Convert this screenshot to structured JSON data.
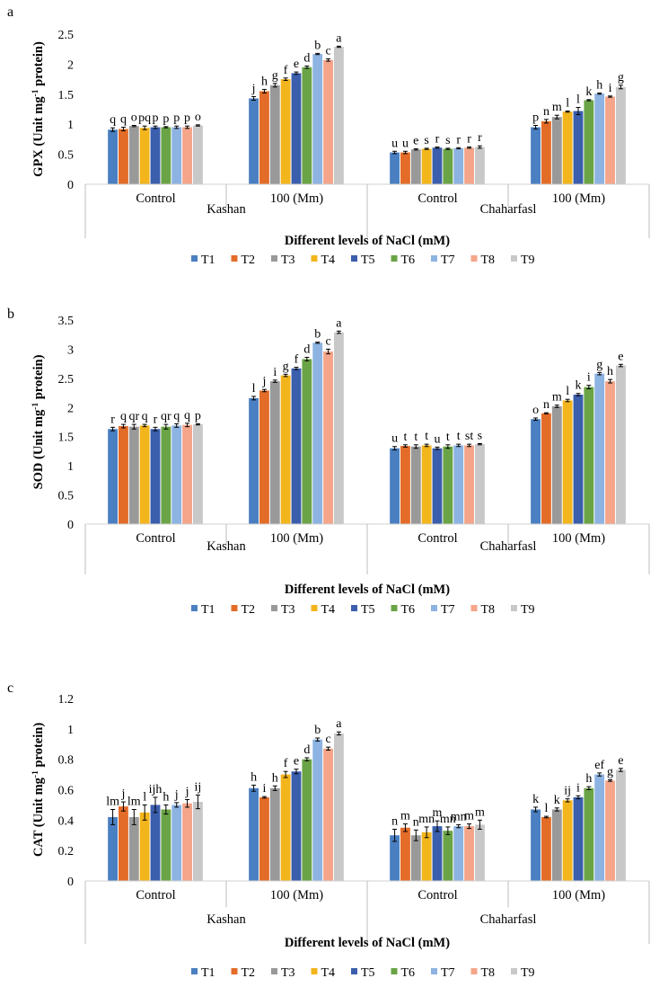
{
  "legend": [
    "T1",
    "T2",
    "T3",
    "T4",
    "T5",
    "T6",
    "T7",
    "T8",
    "T9"
  ],
  "colors": [
    "#4a7fc1",
    "#e36c28",
    "#999999",
    "#f3b51c",
    "#3b5ead",
    "#6aa446",
    "#8db3e2",
    "#f4a58a",
    "#c8c8c8"
  ],
  "chart_data": [
    {
      "type": "bar",
      "panel_letter": "a",
      "title": "",
      "ylabel": "GPX (Unit mg-1 protein)",
      "ylabel_parts": {
        "prefix": "GPX (Unit mg",
        "sup": "-1",
        "suffix": " protein)"
      },
      "xlabel": "Different levels of NaCl (mM)",
      "ylim": [
        0,
        2.5
      ],
      "yticks": [
        0,
        0.5,
        1,
        1.5,
        2,
        2.5
      ],
      "ytick_labels": [
        "0",
        "0.5",
        "1",
        "1.5",
        "2",
        "2.5"
      ],
      "categories": [
        "Control",
        "100 (Mm)",
        "Control",
        "100 (Mm)"
      ],
      "groups": [
        "Kashan",
        "Chaharfasl"
      ],
      "series": [
        {
          "name": "T1",
          "values": [
            0.91,
            1.43,
            0.53,
            0.95
          ],
          "errors": [
            0.03,
            0.03,
            0.02,
            0.03
          ],
          "letters": [
            "q",
            "j",
            "u",
            "p"
          ]
        },
        {
          "name": "T2",
          "values": [
            0.92,
            1.55,
            0.53,
            1.05
          ],
          "errors": [
            0.03,
            0.03,
            0.02,
            0.03
          ],
          "letters": [
            "q",
            "h",
            "u",
            "n"
          ]
        },
        {
          "name": "T3",
          "values": [
            0.97,
            1.65,
            0.58,
            1.12
          ],
          "errors": [
            0.01,
            0.03,
            0.01,
            0.03
          ],
          "letters": [
            "o",
            "g",
            "e",
            "m"
          ]
        },
        {
          "name": "T4",
          "values": [
            0.94,
            1.75,
            0.59,
            1.21
          ],
          "errors": [
            0.03,
            0.02,
            0.01,
            0.01
          ],
          "letters": [
            "pq",
            "f",
            "s",
            "l"
          ]
        },
        {
          "name": "T5",
          "values": [
            0.95,
            1.85,
            0.61,
            1.22
          ],
          "errors": [
            0.02,
            0.02,
            0.01,
            0.06
          ],
          "letters": [
            "p",
            "e",
            "r",
            "l"
          ]
        },
        {
          "name": "T6",
          "values": [
            0.95,
            1.95,
            0.59,
            1.4
          ],
          "errors": [
            0.01,
            0.02,
            0.01,
            0.01
          ],
          "letters": [
            "p",
            "d",
            "s",
            "k"
          ]
        },
        {
          "name": "T7",
          "values": [
            0.95,
            2.17,
            0.6,
            1.51
          ],
          "errors": [
            0.02,
            0.01,
            0.01,
            0.01
          ],
          "letters": [
            "p",
            "b",
            "r",
            "h"
          ]
        },
        {
          "name": "T8",
          "values": [
            0.95,
            2.07,
            0.61,
            1.46
          ],
          "errors": [
            0.02,
            0.02,
            0.01,
            0.01
          ],
          "letters": [
            "p",
            "c",
            "r",
            "i"
          ]
        },
        {
          "name": "T9",
          "values": [
            0.98,
            2.29,
            0.62,
            1.62
          ],
          "errors": [
            0.01,
            0.01,
            0.02,
            0.03
          ],
          "letters": [
            "o",
            "a",
            "r",
            "g"
          ]
        }
      ]
    },
    {
      "type": "bar",
      "panel_letter": "b",
      "title": "",
      "ylabel": "SOD (Unit mg-1 protein)",
      "ylabel_parts": {
        "prefix": "SOD (Unit mg",
        "sup": "-1",
        "suffix": " protein)"
      },
      "xlabel": "Different levels of NaCl (mM)",
      "ylim": [
        0,
        3.5
      ],
      "yticks": [
        0,
        0.5,
        1,
        1.5,
        2,
        2.5,
        3,
        3.5
      ],
      "ytick_labels": [
        "0",
        "0.5",
        "1",
        "1.5",
        "2",
        "2.5",
        "3",
        "3.5"
      ],
      "categories": [
        "Control",
        "100 (Mm)",
        "Control",
        "100 (Mm)"
      ],
      "groups": [
        "Kashan",
        "Chaharfasl"
      ],
      "series": [
        {
          "name": "T1",
          "values": [
            1.63,
            2.16,
            1.3,
            1.8
          ],
          "errors": [
            0.03,
            0.03,
            0.03,
            0.02
          ],
          "letters": [
            "r",
            "l",
            "u",
            "o"
          ]
        },
        {
          "name": "T2",
          "values": [
            1.68,
            2.29,
            1.34,
            1.9
          ],
          "errors": [
            0.03,
            0.02,
            0.02,
            0.01
          ],
          "letters": [
            "q",
            "j",
            "t",
            "n"
          ]
        },
        {
          "name": "T3",
          "values": [
            1.67,
            2.45,
            1.33,
            2.02
          ],
          "errors": [
            0.04,
            0.02,
            0.03,
            0.02
          ],
          "letters": [
            "qr",
            "i",
            "t",
            "m"
          ]
        },
        {
          "name": "T4",
          "values": [
            1.69,
            2.55,
            1.35,
            2.12
          ],
          "errors": [
            0.02,
            0.02,
            0.02,
            0.02
          ],
          "letters": [
            "q",
            "g",
            "t",
            "l"
          ]
        },
        {
          "name": "T5",
          "values": [
            1.63,
            2.67,
            1.3,
            2.22
          ],
          "errors": [
            0.03,
            0.02,
            0.02,
            0.02
          ],
          "letters": [
            "r",
            "f",
            "u",
            "k"
          ]
        },
        {
          "name": "T6",
          "values": [
            1.67,
            2.83,
            1.33,
            2.35
          ],
          "errors": [
            0.04,
            0.03,
            0.03,
            0.03
          ],
          "letters": [
            "qr",
            "d",
            "t",
            "i"
          ]
        },
        {
          "name": "T7",
          "values": [
            1.69,
            3.11,
            1.35,
            2.58
          ],
          "errors": [
            0.03,
            0.01,
            0.02,
            0.02
          ],
          "letters": [
            "q",
            "b",
            "t",
            "g"
          ]
        },
        {
          "name": "T8",
          "values": [
            1.7,
            2.96,
            1.35,
            2.45
          ],
          "errors": [
            0.03,
            0.04,
            0.02,
            0.03
          ],
          "letters": [
            "q",
            "c",
            "st",
            "h"
          ]
        },
        {
          "name": "T9",
          "values": [
            1.71,
            3.29,
            1.37,
            2.72
          ],
          "errors": [
            0.01,
            0.02,
            0.01,
            0.02
          ],
          "letters": [
            "p",
            "a",
            "s",
            "e"
          ]
        }
      ]
    },
    {
      "type": "bar",
      "panel_letter": "c",
      "title": "",
      "ylabel": "CAT (Unit mg-1 protein)",
      "ylabel_parts": {
        "prefix": "CAT (Unit mg",
        "sup": "-1",
        "suffix": " protein)"
      },
      "xlabel": "Different levels of NaCl (mM)",
      "ylim": [
        0,
        1.2
      ],
      "yticks": [
        0,
        0.2,
        0.4,
        0.6,
        0.8,
        1,
        1.2
      ],
      "ytick_labels": [
        "0",
        "0.2",
        "0.4",
        "0.6",
        "0.8",
        "1",
        "1.2"
      ],
      "categories": [
        "Control",
        "100 (Mm)",
        "Control",
        "100 (Mm)"
      ],
      "groups": [
        "Kashan",
        "Chaharfasl"
      ],
      "series": [
        {
          "name": "T1",
          "values": [
            0.42,
            0.61,
            0.3,
            0.47
          ],
          "errors": [
            0.05,
            0.02,
            0.04,
            0.015
          ],
          "letters": [
            "lm",
            "h",
            "n",
            "k"
          ]
        },
        {
          "name": "T2",
          "values": [
            0.49,
            0.55,
            0.35,
            0.42
          ],
          "errors": [
            0.03,
            0.005,
            0.025,
            0.005
          ],
          "letters": [
            "j",
            "i",
            "m",
            "l"
          ]
        },
        {
          "name": "T3",
          "values": [
            0.42,
            0.61,
            0.3,
            0.47
          ],
          "errors": [
            0.05,
            0.015,
            0.035,
            0.01
          ],
          "letters": [
            "lm",
            "h",
            "n",
            "k"
          ]
        },
        {
          "name": "T4",
          "values": [
            0.45,
            0.7,
            0.32,
            0.53
          ],
          "errors": [
            0.05,
            0.02,
            0.035,
            0.01
          ],
          "letters": [
            "l",
            "f",
            "mn",
            "ij"
          ]
        },
        {
          "name": "T5",
          "values": [
            0.5,
            0.72,
            0.36,
            0.55
          ],
          "errors": [
            0.05,
            0.015,
            0.035,
            0.01
          ],
          "letters": [
            "ijh",
            "e",
            "m",
            "i"
          ]
        },
        {
          "name": "T6",
          "values": [
            0.47,
            0.8,
            0.33,
            0.61
          ],
          "errors": [
            0.03,
            0.01,
            0.025,
            0.01
          ],
          "letters": [
            "h",
            "d",
            "mn",
            "h"
          ]
        },
        {
          "name": "T7",
          "values": [
            0.5,
            0.93,
            0.36,
            0.7
          ],
          "errors": [
            0.015,
            0.01,
            0.01,
            0.01
          ],
          "letters": [
            "j",
            "b",
            "mn",
            "ef"
          ]
        },
        {
          "name": "T8",
          "values": [
            0.51,
            0.87,
            0.36,
            0.66
          ],
          "errors": [
            0.025,
            0.01,
            0.015,
            0.005
          ],
          "letters": [
            "j",
            "c",
            "m",
            "g"
          ]
        },
        {
          "name": "T9",
          "values": [
            0.52,
            0.97,
            0.37,
            0.73
          ],
          "errors": [
            0.045,
            0.01,
            0.03,
            0.01
          ],
          "letters": [
            "ij",
            "a",
            "m",
            "e"
          ]
        }
      ]
    }
  ]
}
